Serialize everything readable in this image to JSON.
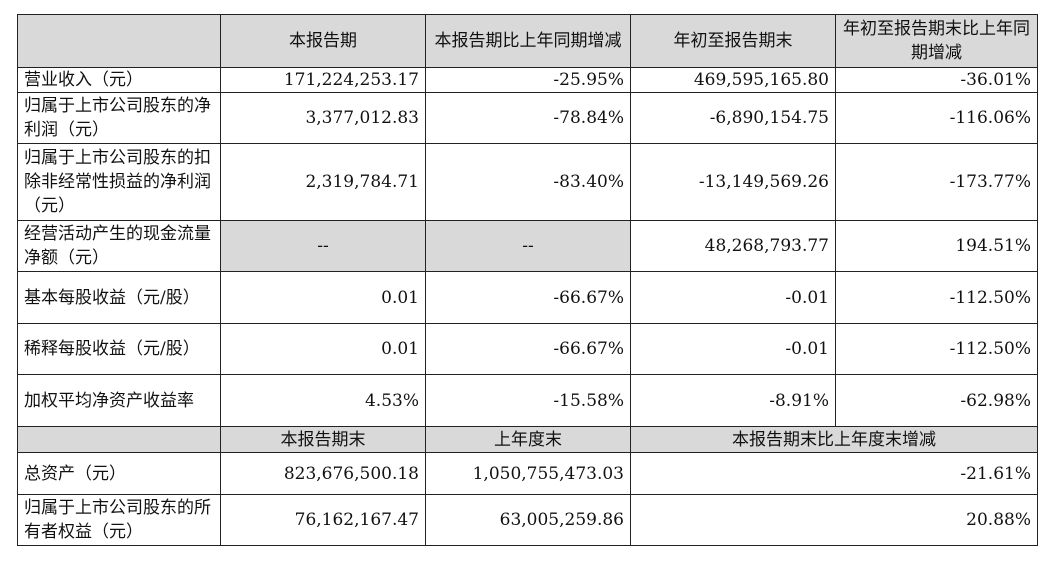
{
  "header": {
    "blank": "",
    "col1": "本报告期",
    "col2": "本报告期比上年同期增减",
    "col3": "年初至报告期末",
    "col4": "年初至报告期末比上年同期增减"
  },
  "rows": [
    {
      "label": "营业收入（元）",
      "v1": "171,224,253.17",
      "v2": "-25.95%",
      "v3": "469,595,165.80",
      "v4": "-36.01%"
    },
    {
      "label": "归属于上市公司股东的净利润（元）",
      "v1": "3,377,012.83",
      "v2": "-78.84%",
      "v3": "-6,890,154.75",
      "v4": "-116.06%"
    },
    {
      "label": "归属于上市公司股东的扣除非经常性损益的净利润（元）",
      "v1": "2,319,784.71",
      "v2": "-83.40%",
      "v3": "-13,149,569.26",
      "v4": "-173.77%"
    },
    {
      "label": "经营活动产生的现金流量净额（元）",
      "v1": "--",
      "v2": "--",
      "v3": "48,268,793.77",
      "v4": "194.51%"
    },
    {
      "label": "基本每股收益（元/股）",
      "v1": "0.01",
      "v2": "-66.67%",
      "v3": "-0.01",
      "v4": "-112.50%"
    },
    {
      "label": "稀释每股收益（元/股）",
      "v1": "0.01",
      "v2": "-66.67%",
      "v3": "-0.01",
      "v4": "-112.50%"
    },
    {
      "label": "加权平均净资产收益率",
      "v1": "4.53%",
      "v2": "-15.58%",
      "v3": "-8.91%",
      "v4": "-62.98%"
    }
  ],
  "subheader": {
    "blank": "",
    "col1": "本报告期末",
    "col2": "上年度末",
    "col3": "本报告期末比上年度末增减"
  },
  "rows2": [
    {
      "label": "总资产（元）",
      "v1": "823,676,500.18",
      "v2": "1,050,755,473.03",
      "v3": "-21.61%"
    },
    {
      "label": "归属于上市公司股东的所有者权益（元）",
      "v1": "76,162,167.47",
      "v2": "63,005,259.86",
      "v3": "20.88%"
    }
  ]
}
